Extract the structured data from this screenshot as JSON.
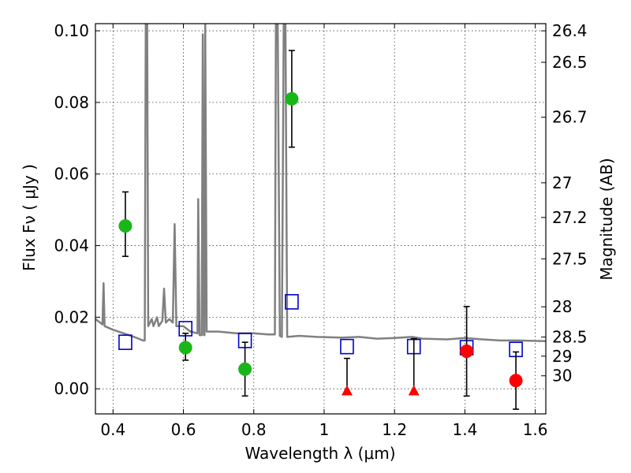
{
  "chart_data": {
    "type": "scatter",
    "xlabel": "Wavelength  λ (μm)",
    "ylabel": "Flux  Fν  ( μJy )",
    "ylabel2": "Magnitude (AB)",
    "xlim": [
      0.35,
      1.63
    ],
    "ylim": [
      -0.007,
      0.102
    ],
    "x_ticks": [
      0.4,
      0.6,
      0.8,
      1.0,
      1.2,
      1.4,
      1.6
    ],
    "x_tick_labels": [
      "0.4",
      "0.6",
      "0.8",
      "1",
      "1.2",
      "1.4",
      "1.6"
    ],
    "y_ticks": [
      0.0,
      0.02,
      0.04,
      0.06,
      0.08,
      0.1
    ],
    "y_tick_labels": [
      "0.00",
      "0.02",
      "0.04",
      "0.06",
      "0.08",
      "0.10"
    ],
    "mag_ticks": [
      "26.4",
      "26.5",
      "26.7",
      "27",
      "27.2",
      "27.5",
      "28",
      "28.5",
      "29",
      "30"
    ],
    "grid": true,
    "colors": {
      "detections": "#19b619",
      "limits": "#ff0000",
      "model_boxes": "#0000cc",
      "spectrum": "#808080",
      "errorbars": "#000000"
    },
    "series": [
      {
        "marker": "circle-green",
        "points": [
          {
            "x": 0.435,
            "y": 0.0455,
            "yerr_low": 0.0085,
            "yerr_high": 0.0095
          },
          {
            "x": 0.606,
            "y": 0.0115,
            "yerr_low": 0.0035,
            "yerr_high": 0.004
          },
          {
            "x": 0.775,
            "y": 0.0055,
            "yerr_low": 0.0075,
            "yerr_high": 0.0075
          },
          {
            "x": 0.908,
            "y": 0.081,
            "yerr_low": 0.0135,
            "yerr_high": 0.0135
          }
        ]
      },
      {
        "marker": "circle-red",
        "points": [
          {
            "x": 1.405,
            "y": 0.0105,
            "yerr_low": 0.0125,
            "yerr_high": 0.0125
          },
          {
            "x": 1.545,
            "y": 0.0023,
            "yerr_low": 0.008,
            "yerr_high": 0.008
          }
        ]
      },
      {
        "marker": "triangle-red",
        "points": [
          {
            "x": 1.065,
            "y": -0.0005,
            "yerr_low": 0,
            "yerr_high": 0.009
          },
          {
            "x": 1.255,
            "y": -0.0005,
            "yerr_low": 0,
            "yerr_high": 0.0145
          }
        ]
      },
      {
        "marker": "square-blue",
        "points": [
          {
            "x": 0.435,
            "y": 0.013
          },
          {
            "x": 0.606,
            "y": 0.0168
          },
          {
            "x": 0.775,
            "y": 0.0135
          },
          {
            "x": 0.908,
            "y": 0.0243
          },
          {
            "x": 1.065,
            "y": 0.0118
          },
          {
            "x": 1.255,
            "y": 0.0118
          },
          {
            "x": 1.405,
            "y": 0.0115
          },
          {
            "x": 1.545,
            "y": 0.011
          }
        ]
      },
      {
        "marker": "line-gray",
        "points": [
          [
            0.35,
            0.0195
          ],
          [
            0.37,
            0.018
          ],
          [
            0.373,
            0.0295
          ],
          [
            0.376,
            0.0175
          ],
          [
            0.4,
            0.0165
          ],
          [
            0.43,
            0.0155
          ],
          [
            0.46,
            0.0145
          ],
          [
            0.485,
            0.0135
          ],
          [
            0.49,
            0.0135
          ],
          [
            0.493,
            0.102
          ],
          [
            0.497,
            0.102
          ],
          [
            0.5,
            0.0175
          ],
          [
            0.51,
            0.0195
          ],
          [
            0.515,
            0.0175
          ],
          [
            0.525,
            0.02
          ],
          [
            0.53,
            0.0175
          ],
          [
            0.54,
            0.019
          ],
          [
            0.545,
            0.028
          ],
          [
            0.55,
            0.0185
          ],
          [
            0.56,
            0.0195
          ],
          [
            0.57,
            0.0185
          ],
          [
            0.575,
            0.046
          ],
          [
            0.58,
            0.0175
          ],
          [
            0.6,
            0.0175
          ],
          [
            0.62,
            0.016
          ],
          [
            0.64,
            0.0155
          ],
          [
            0.642,
            0.053
          ],
          [
            0.646,
            0.015
          ],
          [
            0.652,
            0.015
          ],
          [
            0.655,
            0.099
          ],
          [
            0.658,
            0.015
          ],
          [
            0.66,
            0.015
          ],
          [
            0.662,
            0.102
          ],
          [
            0.666,
            0.016
          ],
          [
            0.7,
            0.016
          ],
          [
            0.75,
            0.0155
          ],
          [
            0.8,
            0.0155
          ],
          [
            0.84,
            0.0152
          ],
          [
            0.86,
            0.0152
          ],
          [
            0.863,
            0.102
          ],
          [
            0.868,
            0.102
          ],
          [
            0.874,
            0.0148
          ],
          [
            0.88,
            0.0145
          ],
          [
            0.885,
            0.102
          ],
          [
            0.89,
            0.102
          ],
          [
            0.895,
            0.0145
          ],
          [
            0.93,
            0.0148
          ],
          [
            0.98,
            0.0145
          ],
          [
            1.05,
            0.0143
          ],
          [
            1.1,
            0.0145
          ],
          [
            1.15,
            0.014
          ],
          [
            1.2,
            0.0142
          ],
          [
            1.25,
            0.0145
          ],
          [
            1.28,
            0.014
          ],
          [
            1.35,
            0.0138
          ],
          [
            1.4,
            0.0142
          ],
          [
            1.45,
            0.0138
          ],
          [
            1.5,
            0.0135
          ],
          [
            1.55,
            0.0135
          ],
          [
            1.63,
            0.0133
          ]
        ]
      }
    ]
  }
}
